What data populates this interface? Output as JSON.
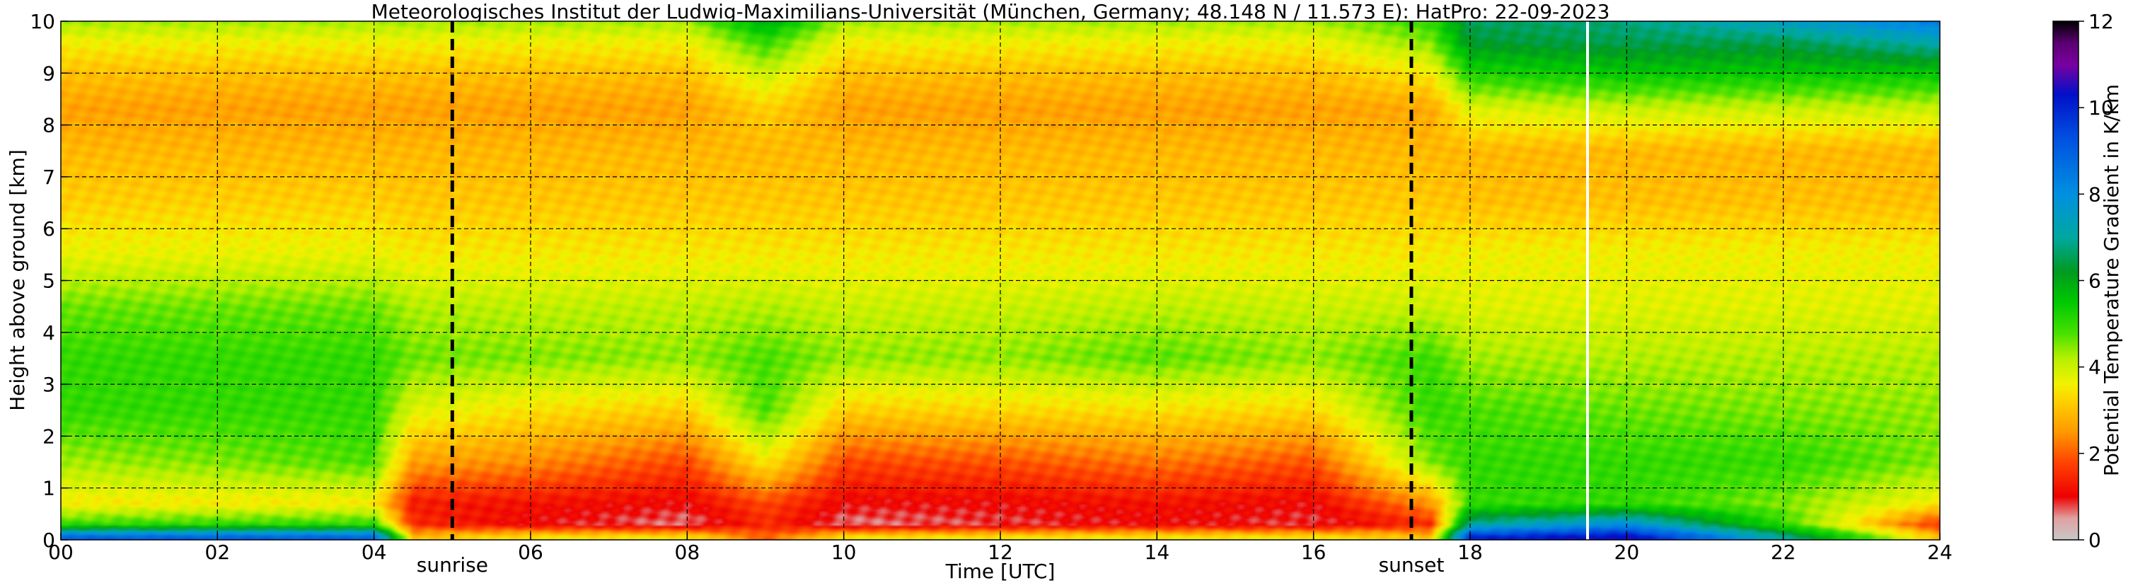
{
  "chart_data": {
    "type": "heatmap",
    "title": "Meteorologisches Institut der Ludwig-Maximilians-Universität (München, Germany; 48.148 N / 11.573 E):    HatPro: 22-09-2023",
    "xlabel": "Time [UTC]",
    "ylabel": "Height above ground [km]",
    "xlim": [
      0,
      24
    ],
    "ylim": [
      0,
      10
    ],
    "xticks": [
      {
        "value": 0,
        "label": "00"
      },
      {
        "value": 2,
        "label": "02"
      },
      {
        "value": 4,
        "label": "04"
      },
      {
        "value": 6,
        "label": "06"
      },
      {
        "value": 8,
        "label": "08"
      },
      {
        "value": 10,
        "label": "10"
      },
      {
        "value": 12,
        "label": "12"
      },
      {
        "value": 14,
        "label": "14"
      },
      {
        "value": 16,
        "label": "16"
      },
      {
        "value": 18,
        "label": "18"
      },
      {
        "value": 20,
        "label": "20"
      },
      {
        "value": 22,
        "label": "22"
      },
      {
        "value": 24,
        "label": "24"
      }
    ],
    "yticks": [
      {
        "value": 0,
        "label": "0"
      },
      {
        "value": 1,
        "label": "1"
      },
      {
        "value": 2,
        "label": "2"
      },
      {
        "value": 3,
        "label": "3"
      },
      {
        "value": 4,
        "label": "4"
      },
      {
        "value": 5,
        "label": "5"
      },
      {
        "value": 6,
        "label": "6"
      },
      {
        "value": 7,
        "label": "7"
      },
      {
        "value": 8,
        "label": "8"
      },
      {
        "value": 9,
        "label": "9"
      },
      {
        "value": 10,
        "label": "10"
      }
    ],
    "grid": true,
    "events": [
      {
        "name": "sunrise",
        "time": 5.0
      },
      {
        "name": "sunset",
        "time": 17.25
      }
    ],
    "missing_data_time": 19.5,
    "colorbar": {
      "label": "Potential Temperature Gradient in K/km",
      "range": [
        0,
        12
      ],
      "ticks": [
        {
          "value": 0,
          "label": "0"
        },
        {
          "value": 2,
          "label": "2"
        },
        {
          "value": 4,
          "label": "4"
        },
        {
          "value": 6,
          "label": "6"
        },
        {
          "value": 8,
          "label": "8"
        },
        {
          "value": 10,
          "label": "10"
        },
        {
          "value": 12,
          "label": "12"
        }
      ],
      "stops": [
        {
          "value": 0.0,
          "color": "#c8c8c8"
        },
        {
          "value": 0.5,
          "color": "#e0a0a0"
        },
        {
          "value": 1.0,
          "color": "#ee0000"
        },
        {
          "value": 1.8,
          "color": "#ff4400"
        },
        {
          "value": 2.5,
          "color": "#ff9900"
        },
        {
          "value": 3.2,
          "color": "#ffd000"
        },
        {
          "value": 3.6,
          "color": "#f2f200"
        },
        {
          "value": 4.2,
          "color": "#b6f000"
        },
        {
          "value": 4.8,
          "color": "#44e000"
        },
        {
          "value": 5.5,
          "color": "#00c800"
        },
        {
          "value": 6.2,
          "color": "#009a20"
        },
        {
          "value": 7.0,
          "color": "#00a8a0"
        },
        {
          "value": 8.0,
          "color": "#0090e0"
        },
        {
          "value": 9.3,
          "color": "#0050e0"
        },
        {
          "value": 10.3,
          "color": "#0010c8"
        },
        {
          "value": 11.0,
          "color": "#7a00a0"
        },
        {
          "value": 11.5,
          "color": "#5a0070"
        },
        {
          "value": 12.0,
          "color": "#000000"
        }
      ]
    },
    "field_summary": {
      "x_hours": [
        0,
        2,
        4,
        4.5,
        6,
        8,
        9,
        10,
        12,
        14,
        16,
        17.5,
        18,
        20,
        22,
        24
      ],
      "rows": [
        {
          "height_km": 0.05,
          "values": [
            9,
            9,
            9,
            3,
            3.5,
            3.5,
            2,
            3.5,
            3.5,
            3.5,
            3.5,
            3,
            10,
            10.5,
            7,
            3
          ]
        },
        {
          "height_km": 0.3,
          "values": [
            5,
            5,
            5,
            1.5,
            1.0,
            0.6,
            1.5,
            0.6,
            0.8,
            1.0,
            0.8,
            1.5,
            7,
            8,
            5,
            1.5
          ]
        },
        {
          "height_km": 0.7,
          "values": [
            3.5,
            3.5,
            3.5,
            1.3,
            1.2,
            1.0,
            1.8,
            1.0,
            1.0,
            1.2,
            1.0,
            2.5,
            5,
            5,
            4.5,
            3.5
          ]
        },
        {
          "height_km": 1.5,
          "values": [
            4.3,
            4.5,
            4.8,
            2.6,
            2.4,
            1.8,
            3.5,
            1.8,
            1.9,
            2.2,
            1.9,
            4.5,
            5,
            5,
            5,
            4.5
          ]
        },
        {
          "height_km": 2.5,
          "values": [
            5,
            5,
            5,
            3.8,
            3.4,
            3.2,
            4.8,
            3.2,
            3.3,
            3.4,
            3.3,
            5,
            4.8,
            4.6,
            4.5,
            4.4
          ]
        },
        {
          "height_km": 3.5,
          "values": [
            5,
            5,
            5,
            4.6,
            4.5,
            4.4,
            4.8,
            4.4,
            4.4,
            4.7,
            4.4,
            4.9,
            4.3,
            4.2,
            4.2,
            4.2
          ]
        },
        {
          "height_km": 4.5,
          "values": [
            4.6,
            4.6,
            4.6,
            4.2,
            4.1,
            4.1,
            4.2,
            4.0,
            4.0,
            4.1,
            4.0,
            4.0,
            3.8,
            3.8,
            3.8,
            3.8
          ]
        },
        {
          "height_km": 5.5,
          "values": [
            3.7,
            3.7,
            3.7,
            3.5,
            3.5,
            3.5,
            3.5,
            3.5,
            3.5,
            3.5,
            3.5,
            3.5,
            3.6,
            3.6,
            3.6,
            3.6
          ]
        },
        {
          "height_km": 6.5,
          "values": [
            3.2,
            3.2,
            3.2,
            3.1,
            3.1,
            3.1,
            3.1,
            3.1,
            3.1,
            3.1,
            3.1,
            3.1,
            3.0,
            3.0,
            3.0,
            3.0
          ]
        },
        {
          "height_km": 7.5,
          "values": [
            2.9,
            2.9,
            2.9,
            2.9,
            2.9,
            2.9,
            2.9,
            2.9,
            2.9,
            2.9,
            2.9,
            2.9,
            2.9,
            2.9,
            2.9,
            2.9
          ]
        },
        {
          "height_km": 8.3,
          "values": [
            2.6,
            2.6,
            2.6,
            2.6,
            2.6,
            2.6,
            3.2,
            2.6,
            2.6,
            2.6,
            2.6,
            2.7,
            3.8,
            4.0,
            4.0,
            4.0
          ]
        },
        {
          "height_km": 9.0,
          "values": [
            3.0,
            3.0,
            3.0,
            3.0,
            3.0,
            3.0,
            4.0,
            3.0,
            3.0,
            3.0,
            3.0,
            3.5,
            5.2,
            5.5,
            5.5,
            5.5
          ]
        },
        {
          "height_km": 9.6,
          "values": [
            3.6,
            3.6,
            3.6,
            3.6,
            3.6,
            3.6,
            5.0,
            3.6,
            3.6,
            3.6,
            3.6,
            4.5,
            6.3,
            6.5,
            6.5,
            7.2
          ]
        },
        {
          "height_km": 10.0,
          "values": [
            4.3,
            4.3,
            4.3,
            4.3,
            4.3,
            4.3,
            6.0,
            4.3,
            4.3,
            4.3,
            4.3,
            5.0,
            6.6,
            6.8,
            7.5,
            8.5
          ]
        }
      ]
    }
  }
}
